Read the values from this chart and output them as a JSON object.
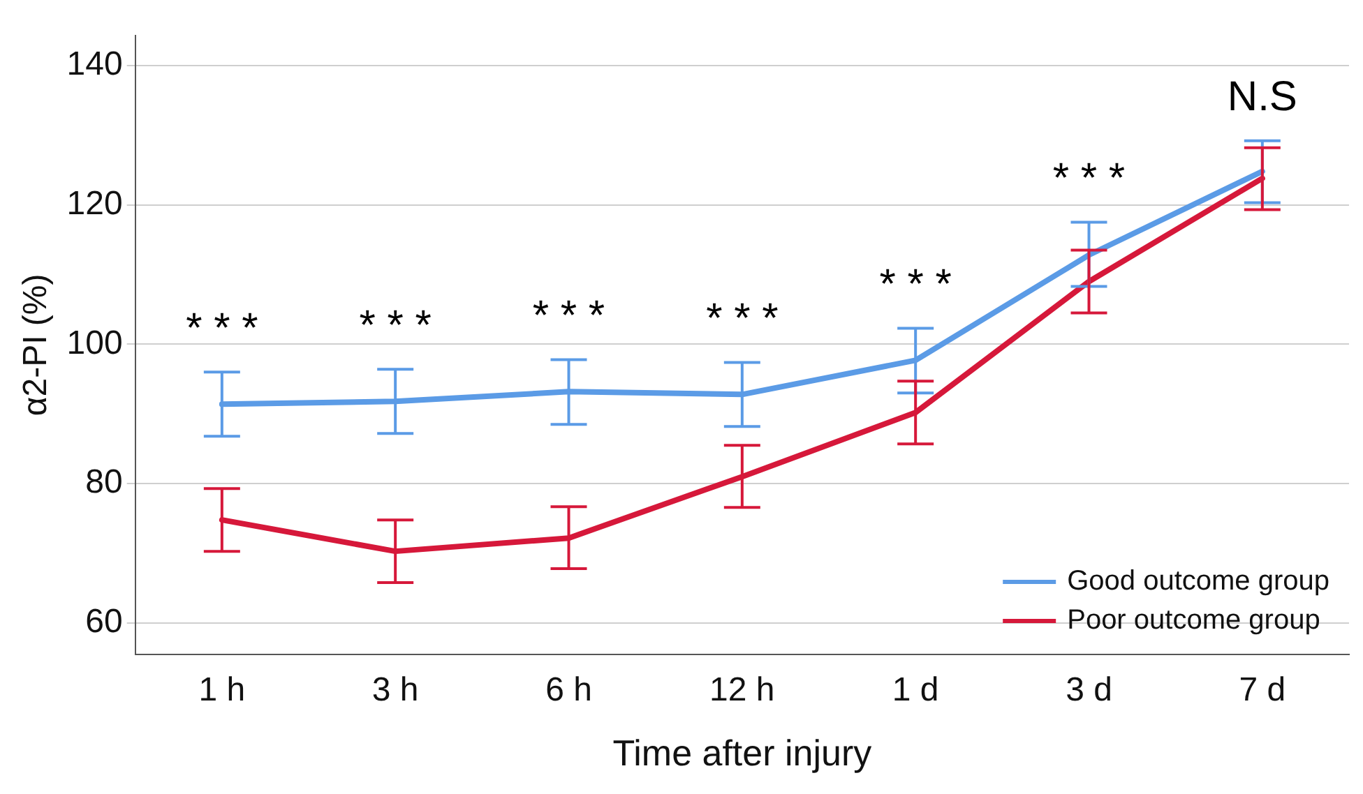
{
  "chart_data": {
    "type": "line",
    "xlabel": "Time after injury",
    "ylabel": "α2-PI (%)",
    "categories": [
      "1 h",
      "3 h",
      "6 h",
      "12 h",
      "1 d",
      "3 d",
      "7 d"
    ],
    "series": [
      {
        "name": "Good outcome group",
        "color": "#5b9be6",
        "values": [
          91.4,
          91.8,
          93.2,
          92.8,
          97.7,
          112.8,
          124.8
        ],
        "errors": [
          [
            86.8,
            96.0
          ],
          [
            87.2,
            96.4
          ],
          [
            88.5,
            97.8
          ],
          [
            88.2,
            97.4
          ],
          [
            93.0,
            102.3
          ],
          [
            108.3,
            117.5
          ],
          [
            120.3,
            129.2
          ]
        ]
      },
      {
        "name": "Poor outcome group",
        "color": "#d6183a",
        "values": [
          74.8,
          70.3,
          72.2,
          81.0,
          90.2,
          109.0,
          123.8
        ],
        "errors": [
          [
            70.3,
            79.3
          ],
          [
            65.8,
            74.8
          ],
          [
            67.8,
            76.7
          ],
          [
            76.6,
            85.5
          ],
          [
            85.7,
            94.7
          ],
          [
            104.5,
            113.5
          ],
          [
            119.3,
            128.2
          ]
        ]
      }
    ],
    "ylim": [
      55.5,
      144.3
    ],
    "yticks": [
      60,
      80,
      100,
      120,
      140
    ],
    "grid": "y",
    "legend": "bottom right",
    "marker": "none",
    "line_style": "solid",
    "annotations": [
      "* * *",
      "* * *",
      "* * *",
      "* * *",
      "* * *",
      "* * *",
      "N.S"
    ]
  }
}
